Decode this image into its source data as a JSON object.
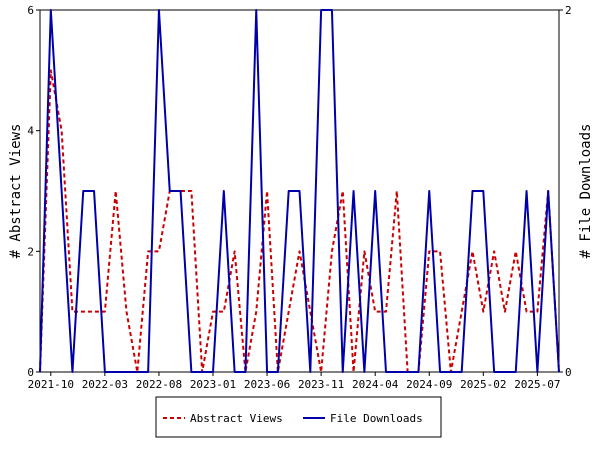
{
  "chart_data": {
    "type": "line",
    "y_left_label": "# Abstract Views",
    "y_right_label": "# File Downloads",
    "y_left_lim": [
      0,
      6
    ],
    "y_right_lim": [
      0,
      2
    ],
    "y_left_ticks": [
      "0",
      "2",
      "4",
      "6"
    ],
    "y_right_ticks": [
      "0",
      "2"
    ],
    "x_tick_labels": [
      "2021-10",
      "2022-03",
      "2022-08",
      "2023-01",
      "2023-06",
      "2023-11",
      "2024-04",
      "2024-09",
      "2025-02",
      "2025-07"
    ],
    "grid": false,
    "legend_position": "bottom",
    "series": [
      {
        "name": "Abstract Views",
        "axis": "left",
        "color": "#cc0000",
        "dash": true,
        "x": [
          "2021-09",
          "2021-10",
          "2021-11",
          "2021-12",
          "2022-01",
          "2022-02",
          "2022-03",
          "2022-04",
          "2022-05",
          "2022-06",
          "2022-07",
          "2022-08",
          "2022-09",
          "2022-10",
          "2022-11",
          "2022-12",
          "2023-01",
          "2023-02",
          "2023-03",
          "2023-04",
          "2023-05",
          "2023-06",
          "2023-07",
          "2023-08",
          "2023-09",
          "2023-10",
          "2023-11",
          "2023-12",
          "2024-01",
          "2024-02",
          "2024-03",
          "2024-04",
          "2024-05",
          "2024-06",
          "2024-07",
          "2024-08",
          "2024-09",
          "2024-10",
          "2024-11",
          "2024-12",
          "2025-01",
          "2025-02",
          "2025-03",
          "2025-04",
          "2025-05",
          "2025-06",
          "2025-07",
          "2025-08",
          "2025-09"
        ],
        "values": [
          0,
          5,
          4,
          1,
          1,
          1,
          1,
          3,
          1,
          0,
          2,
          2,
          3,
          3,
          3,
          0,
          1,
          1,
          2,
          0,
          1,
          3,
          0,
          1,
          2,
          1,
          0,
          2,
          3,
          0,
          2,
          1,
          1,
          3,
          0,
          0,
          2,
          2,
          0,
          1,
          2,
          1,
          2,
          1,
          2,
          1,
          1,
          3,
          0
        ]
      },
      {
        "name": "File Downloads",
        "axis": "right",
        "color": "#0000aa",
        "dash": false,
        "x": [
          "2021-09",
          "2021-10",
          "2021-11",
          "2021-12",
          "2022-01",
          "2022-02",
          "2022-03",
          "2022-04",
          "2022-05",
          "2022-06",
          "2022-07",
          "2022-08",
          "2022-09",
          "2022-10",
          "2022-11",
          "2022-12",
          "2023-01",
          "2023-02",
          "2023-03",
          "2023-04",
          "2023-05",
          "2023-06",
          "2023-07",
          "2023-08",
          "2023-09",
          "2023-10",
          "2023-11",
          "2023-12",
          "2024-01",
          "2024-02",
          "2024-03",
          "2024-04",
          "2024-05",
          "2024-06",
          "2024-07",
          "2024-08",
          "2024-09",
          "2024-10",
          "2024-11",
          "2024-12",
          "2025-01",
          "2025-02",
          "2025-03",
          "2025-04",
          "2025-05",
          "2025-06",
          "2025-07",
          "2025-08",
          "2025-09"
        ],
        "values": [
          0,
          2,
          1,
          0,
          1,
          1,
          0,
          0,
          0,
          0,
          0,
          2,
          1,
          1,
          0,
          0,
          0,
          1,
          0,
          0,
          2,
          0,
          0,
          1,
          1,
          0,
          2,
          2,
          0,
          1,
          0,
          1,
          0,
          0,
          0,
          0,
          1,
          0,
          0,
          0,
          1,
          1,
          0,
          0,
          0,
          1,
          0,
          1,
          0
        ]
      }
    ]
  }
}
